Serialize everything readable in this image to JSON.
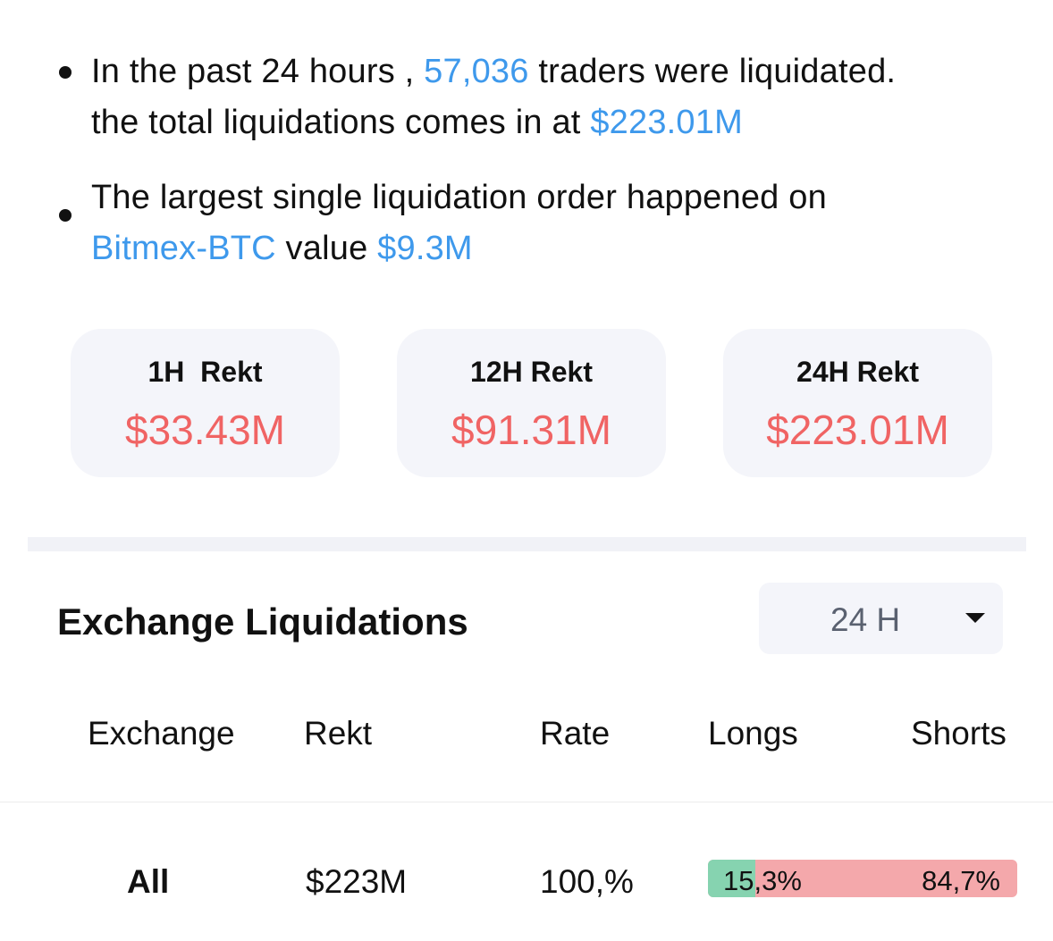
{
  "summary": {
    "line1_prefix": "In the past 24 hours , ",
    "traders_count": "57,036",
    "line1_suffix": " traders were liquidated.",
    "line2_prefix": "the total liquidations comes in at ",
    "total_liquidations": "$223.01M",
    "largest_prefix": "The largest single liquidation order happened on",
    "largest_exchange": "Bitmex-BTC",
    "largest_mid": " value ",
    "largest_value": "$9.3M"
  },
  "cards": [
    {
      "label": "1H  Rekt",
      "value": "$33.43M"
    },
    {
      "label": "12H Rekt",
      "value": "$91.31M"
    },
    {
      "label": "24H Rekt",
      "value": "$223.01M"
    }
  ],
  "exchange_section": {
    "title": "Exchange Liquidations",
    "period_selected": "24 H"
  },
  "table": {
    "headers": [
      "Exchange",
      "Rekt",
      "Rate",
      "Longs",
      "Shorts"
    ],
    "rows": [
      {
        "exchange": "All",
        "rekt": "$223M",
        "rate": "100,%",
        "longs_label": "15,3%",
        "shorts_label": "84,7%",
        "longs_fraction": 0.153
      }
    ]
  },
  "colors": {
    "accent_blue": "#3e99ec",
    "rekt_red": "#f06464",
    "long_green": "#86d3b0",
    "short_red": "#f4a8ab",
    "card_background": "#f4f5fa"
  },
  "icons": {
    "period_dropdown": "caret-down-icon"
  }
}
